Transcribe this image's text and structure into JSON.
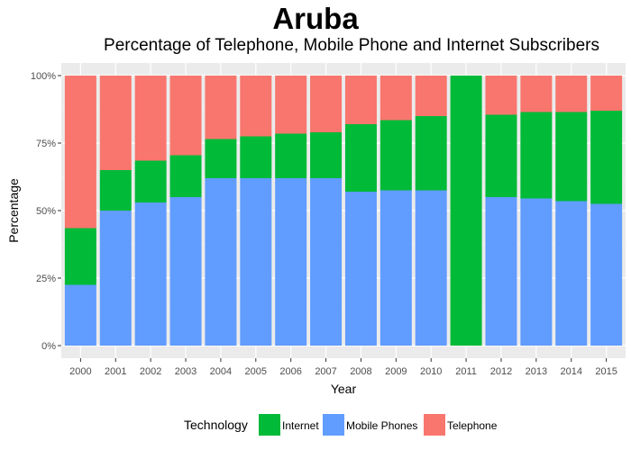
{
  "chart_data": {
    "type": "bar",
    "stacked": true,
    "title": "Aruba",
    "subtitle": "Percentage of Telephone, Mobile Phone and Internet Subscribers",
    "xlabel": "Year",
    "ylabel": "Percentage",
    "categories": [
      "2000",
      "2001",
      "2002",
      "2003",
      "2004",
      "2005",
      "2006",
      "2007",
      "2008",
      "2009",
      "2010",
      "2011",
      "2012",
      "2013",
      "2014",
      "2015"
    ],
    "ylim": [
      0,
      100
    ],
    "yticks": [
      0,
      25,
      50,
      75,
      100
    ],
    "ytick_labels": [
      "0%",
      "25%",
      "50%",
      "75%",
      "100%"
    ],
    "grid": true,
    "legend_position": "bottom",
    "legend_title": "Technology",
    "series": [
      {
        "name": "Mobile Phones",
        "color": "#619CFF",
        "values": [
          22.5,
          50,
          53,
          55,
          62,
          62,
          62,
          62,
          57,
          57.5,
          57.5,
          0,
          55,
          54.5,
          53.5,
          52.5
        ]
      },
      {
        "name": "Internet",
        "color": "#00BA38",
        "values": [
          21,
          15,
          15.5,
          15.5,
          14.5,
          15.5,
          16.5,
          17,
          25,
          26,
          27.5,
          100,
          30.5,
          32,
          33,
          34.5
        ]
      },
      {
        "name": "Telephone",
        "color": "#F8766D",
        "values": [
          56.5,
          35,
          31.5,
          29.5,
          23.5,
          22.5,
          21.5,
          21,
          18,
          16.5,
          15,
          0,
          14.5,
          13.5,
          13.5,
          13
        ]
      }
    ],
    "legend_order": [
      "Internet",
      "Mobile Phones",
      "Telephone"
    ]
  }
}
